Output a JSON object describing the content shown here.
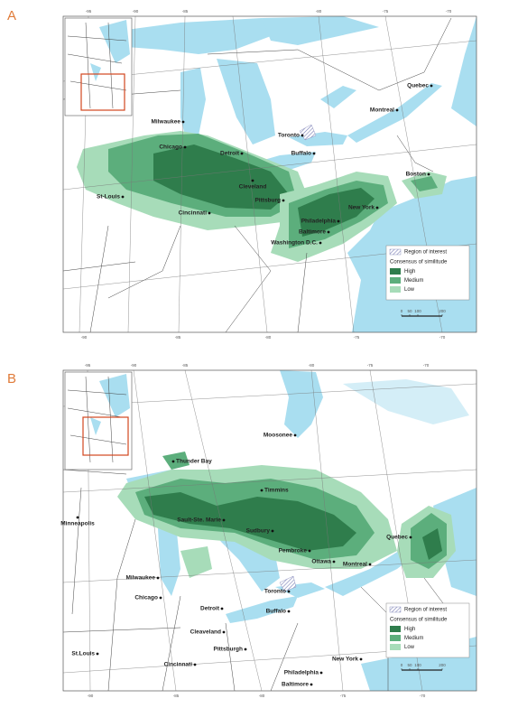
{
  "panels": [
    {
      "label": "A",
      "top_degrees": [
        "-95",
        "-90",
        "-85",
        "-80",
        "-75",
        "-70"
      ],
      "bottom_degrees": [
        "-90",
        "-85",
        "-80",
        "-75",
        "-70"
      ],
      "cities": [
        "Quebec",
        "Montreal",
        "Milwaukee",
        "Toronto",
        "Chicago",
        "Detroit",
        "Buffalo",
        "Boston",
        "Cleveland",
        "St-Louis",
        "Pittsburg",
        "Cincinnati",
        "New York",
        "Philadelphia",
        "Baltimore",
        "Washington D.C."
      ],
      "legend": {
        "region": "Region of interest",
        "title": "Consensus of similitude",
        "levels": [
          "High",
          "Medium",
          "Low"
        ]
      },
      "scale": [
        "0",
        "50",
        "100",
        "200"
      ]
    },
    {
      "label": "B",
      "top_degrees": [
        "-95",
        "-90",
        "-85",
        "-80",
        "-75",
        "-70"
      ],
      "bottom_degrees": [
        "-90",
        "-85",
        "-80",
        "-75",
        "-70"
      ],
      "cities": [
        "Moosonee",
        "Thunder Bay",
        "Timmins",
        "Minneapolis",
        "Sault-Ste. Marie",
        "Sudbury",
        "Quebec",
        "Pembroke",
        "Ottawa",
        "Montreal",
        "Milwaukee",
        "Toronto",
        "Chicago",
        "Detroit",
        "Buffalo",
        "Cleaveland",
        "Pittsburgh",
        "New York",
        "St.Louis",
        "Cincinnati",
        "Philadelphia",
        "Baltimore"
      ],
      "legend": {
        "region": "Region of interest",
        "title": "Consensus of similitude",
        "levels": [
          "High",
          "Medium",
          "Low"
        ]
      },
      "scale": [
        "0",
        "50",
        "100",
        "200"
      ]
    }
  ]
}
